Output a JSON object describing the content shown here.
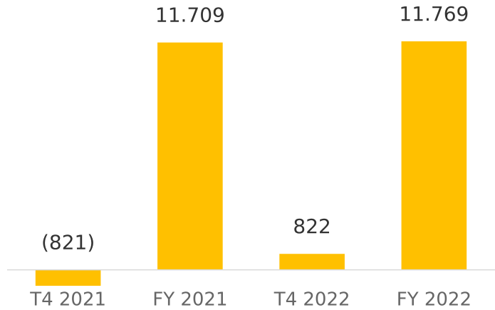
{
  "chart_data": {
    "type": "bar",
    "categories": [
      "T4 2021",
      "FY 2021",
      "T4 2022",
      "FY 2022"
    ],
    "values": [
      -821,
      11709,
      822,
      11769
    ],
    "value_labels": [
      "(821)",
      "11.709",
      "822",
      "11.769"
    ],
    "color": "#ffc000"
  }
}
